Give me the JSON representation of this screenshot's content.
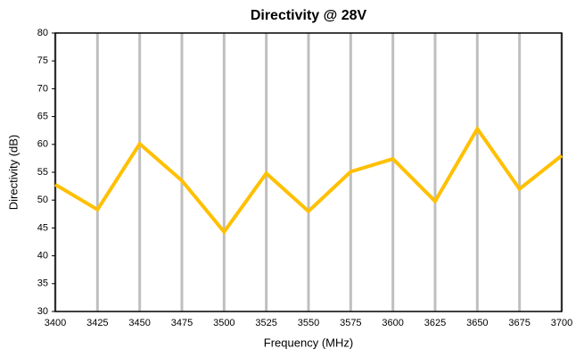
{
  "chart_data": {
    "type": "line",
    "title": "Directivity @ 28V",
    "x_label": "Frequency (MHz)",
    "y_label": "Directivity (dB)",
    "x": [
      3400,
      3425,
      3450,
      3475,
      3500,
      3525,
      3550,
      3575,
      3600,
      3625,
      3650,
      3675,
      3700
    ],
    "series": [
      {
        "name": "Directivity",
        "color": "#ffc000",
        "values": [
          52.8,
          48.3,
          60.1,
          53.5,
          44.3,
          54.8,
          48.0,
          55.1,
          57.4,
          49.8,
          62.8,
          52.0,
          58.0
        ]
      }
    ],
    "xlim": [
      3400,
      3700
    ],
    "xticks": [
      3400,
      3425,
      3450,
      3475,
      3500,
      3525,
      3550,
      3575,
      3600,
      3625,
      3650,
      3675,
      3700
    ],
    "ylim": [
      30,
      80
    ],
    "yticks": [
      30,
      35,
      40,
      45,
      50,
      55,
      60,
      65,
      70,
      75,
      80
    ],
    "grid": "x"
  }
}
